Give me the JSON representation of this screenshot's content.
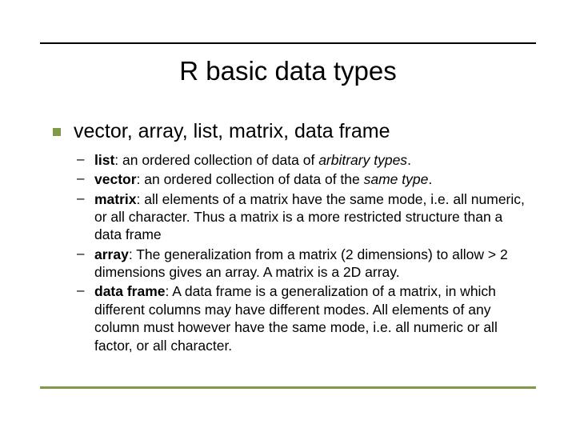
{
  "colors": {
    "top_rule": "#000000",
    "bottom_rule": "#7f9a48",
    "bullet_l1": "#7f9a48",
    "text": "#000000",
    "background": "#ffffff"
  },
  "title": "R basic data types",
  "level1": "vector, array, list, matrix, data frame",
  "items": [
    {
      "term": "list",
      "rest": ": an ordered collection of data of ",
      "ital": "arbitrary types",
      "tail": "."
    },
    {
      "term": "vector",
      "rest": ": an ordered collection of data of the ",
      "ital": "same type",
      "tail": "."
    },
    {
      "term": "matrix",
      "rest": ": all elements of a matrix have the same mode, i.e. all numeric, or all character.  Thus a matrix is a more restricted structure than a data frame",
      "ital": "",
      "tail": ""
    },
    {
      "term": "array",
      "rest": ": The generalization from a matrix (2 dimensions) to allow > 2 dimensions gives an array.  A matrix is a 2D array.",
      "ital": "",
      "tail": ""
    },
    {
      "term": "data frame",
      "rest": ": A data frame is a generalization of a matrix, in which different columns may have different modes.  All elements of any column must however have the same mode, i.e. all numeric or all factor, or all character.",
      "ital": "",
      "tail": ""
    }
  ]
}
